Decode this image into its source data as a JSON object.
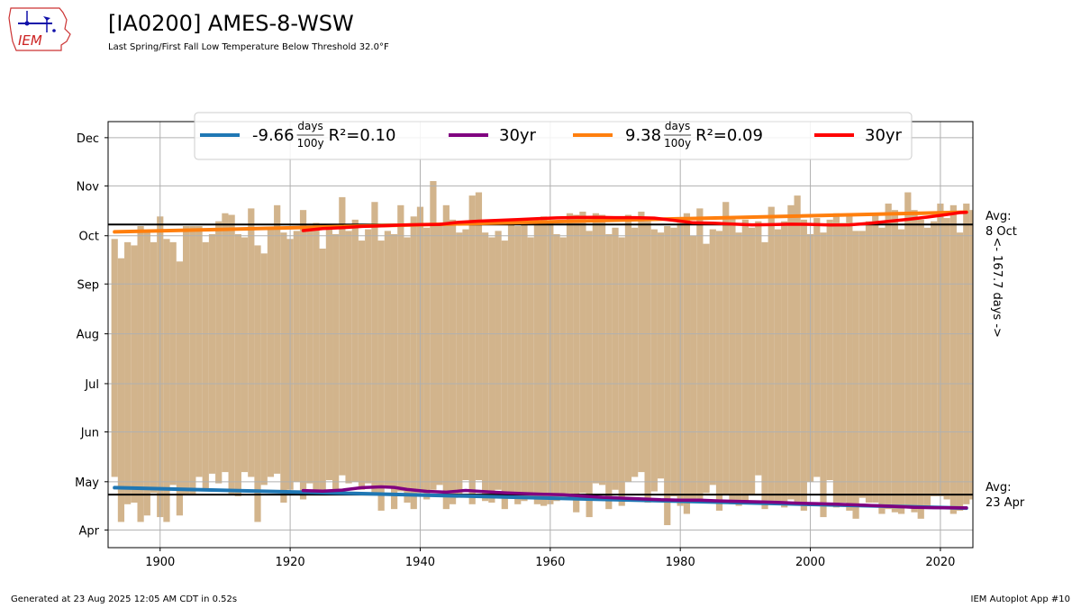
{
  "header": {
    "title": "[IA0200] AMES-8-WSW",
    "subtitle": "Last Spring/First Fall Low Temperature Below Threshold 32.0°F"
  },
  "logo": {
    "text": "IEM",
    "icon": "iowa-state-outline-weather-station-icon"
  },
  "footer": {
    "generated": "Generated at 23 Aug 2025 12:05 AM CDT in 0.52s",
    "app": "IEM Autoplot App #10"
  },
  "colors": {
    "bars": "#d2b48c",
    "spring_trend": "#1f77b4",
    "spring_30yr": "#800080",
    "fall_trend": "#ff7f0e",
    "fall_30yr": "#ff0000",
    "avg_line": "#000000",
    "grid": "#b0b0b0"
  },
  "chart_data": {
    "type": "bar",
    "description_units": "day of year (1 = Jan 1)",
    "xlim": [
      1892,
      2025
    ],
    "ylim": [
      80,
      345
    ],
    "x_ticks": [
      1900,
      1920,
      1940,
      1960,
      1980,
      2000,
      2020
    ],
    "y_ticks": [
      {
        "label": "Apr",
        "doy": 91
      },
      {
        "label": "May",
        "doy": 121
      },
      {
        "label": "Jun",
        "doy": 152
      },
      {
        "label": "Jul",
        "doy": 182
      },
      {
        "label": "Aug",
        "doy": 213
      },
      {
        "label": "Sep",
        "doy": 244
      },
      {
        "label": "Oct",
        "doy": 274
      },
      {
        "label": "Nov",
        "doy": 305
      },
      {
        "label": "Dec",
        "doy": 335
      }
    ],
    "grid": true,
    "legend": {
      "placement": "top-center",
      "entries": [
        {
          "series": "spring_trend",
          "slope": "-9.66",
          "r2": "R²=0.10",
          "unit_num": "days",
          "unit_den": "100y"
        },
        {
          "series": "spring_30yr",
          "label": "30yr"
        },
        {
          "series": "fall_trend",
          "slope": "9.38",
          "r2": "R²=0.09",
          "unit_num": "days",
          "unit_den": "100y"
        },
        {
          "series": "fall_30yr",
          "label": "30yr"
        }
      ]
    },
    "avg_spring": {
      "doy": 113,
      "label1": "Avg:",
      "label2": "23 Apr"
    },
    "avg_fall": {
      "doy": 281,
      "label1": "Avg:",
      "label2": "8 Oct"
    },
    "span_label": "<- 167.7 days ->",
    "first_year": 1893,
    "spring": [
      124,
      96,
      107,
      108,
      96,
      100,
      114,
      99,
      96,
      119,
      100,
      113,
      113,
      124,
      116,
      126,
      120,
      127,
      113,
      112,
      127,
      124,
      96,
      119,
      124,
      126,
      108,
      116,
      121,
      110,
      120,
      114,
      115,
      122,
      116,
      125,
      120,
      121,
      116,
      120,
      114,
      103,
      118,
      104,
      115,
      108,
      104,
      114,
      110,
      116,
      119,
      104,
      107,
      111,
      122,
      107,
      122,
      109,
      108,
      116,
      104,
      111,
      107,
      109,
      112,
      107,
      106,
      107,
      109,
      110,
      111,
      102,
      114,
      99,
      120,
      119,
      104,
      116,
      106,
      121,
      124,
      127,
      108,
      115,
      123,
      94,
      112,
      106,
      101,
      110,
      108,
      114,
      119,
      103,
      113,
      107,
      106,
      108,
      113,
      125,
      104,
      108,
      107,
      105,
      110,
      107,
      103,
      121,
      124,
      99,
      122,
      105,
      108,
      103,
      98,
      111,
      108,
      108,
      101,
      104,
      102,
      101,
      106,
      102,
      98,
      104,
      112,
      112,
      110,
      101,
      103,
      107,
      110
    ],
    "fall": [
      272,
      260,
      270,
      268,
      280,
      276,
      270,
      286,
      272,
      270,
      258,
      280,
      280,
      280,
      270,
      275,
      283,
      288,
      287,
      275,
      273,
      291,
      268,
      263,
      278,
      293,
      276,
      272,
      277,
      290,
      277,
      282,
      266,
      279,
      275,
      298,
      277,
      284,
      271,
      278,
      295,
      271,
      277,
      275,
      293,
      273,
      286,
      292,
      279,
      308,
      282,
      293,
      284,
      276,
      278,
      299,
      301,
      276,
      273,
      277,
      271,
      283,
      280,
      283,
      273,
      283,
      286,
      283,
      275,
      273,
      288,
      287,
      289,
      277,
      288,
      287,
      275,
      279,
      273,
      287,
      279,
      289,
      283,
      278,
      276,
      280,
      279,
      282,
      288,
      274,
      291,
      269,
      278,
      277,
      295,
      285,
      276,
      284,
      279,
      283,
      270,
      292,
      278,
      283,
      293,
      299,
      284,
      275,
      285,
      276,
      284,
      288,
      282,
      288,
      277,
      277,
      283,
      288,
      279,
      294,
      290,
      278,
      301,
      290,
      284,
      279,
      283,
      294,
      285,
      293,
      276,
      294,
      290
    ],
    "spring_30yr": {
      "x": [
        1922,
        1925,
        1928,
        1931,
        1934,
        1936,
        1938,
        1941,
        1944,
        1947,
        1950,
        1953,
        1956,
        1959,
        1962,
        1965,
        1968,
        1971,
        1974,
        1977,
        1980,
        1983,
        1986,
        1989,
        1992,
        1995,
        1998,
        2001,
        2004,
        2007,
        2010,
        2013,
        2016,
        2019,
        2022,
        2024
      ],
      "values": [
        115.5,
        115.2,
        115.8,
        117.3,
        117.8,
        117.5,
        116.2,
        115.0,
        114.5,
        115.6,
        114.8,
        114.1,
        113.6,
        113.2,
        112.9,
        112.1,
        111.3,
        110.8,
        110.3,
        109.8,
        109.6,
        109.6,
        109.1,
        108.8,
        108.5,
        108.2,
        107.7,
        107.4,
        107.0,
        106.6,
        106.1,
        105.6,
        105.1,
        104.9,
        104.8,
        104.7
      ]
    },
    "fall_30yr": {
      "x": [
        1922,
        1925,
        1928,
        1931,
        1934,
        1937,
        1940,
        1943,
        1946,
        1949,
        1952,
        1955,
        1958,
        1961,
        1964,
        1967,
        1970,
        1973,
        1976,
        1979,
        1982,
        1985,
        1988,
        1991,
        1994,
        1997,
        2000,
        2003,
        2006,
        2009,
        2012,
        2015,
        2018,
        2021,
        2023,
        2024
      ],
      "values": [
        277.2,
        278.5,
        279.0,
        279.8,
        280.2,
        280.6,
        280.9,
        281.1,
        282.4,
        283.1,
        283.6,
        284.1,
        284.6,
        285.1,
        285.4,
        285.5,
        285.3,
        285.3,
        285.0,
        283.6,
        282.1,
        281.8,
        281.3,
        280.8,
        280.9,
        281.2,
        281.1,
        280.7,
        280.8,
        281.7,
        282.9,
        284.2,
        285.6,
        287.2,
        288.4,
        288.6
      ]
    },
    "spring_trend": {
      "x": [
        1893,
        2024
      ],
      "values": [
        117.3,
        104.6
      ]
    },
    "fall_trend": {
      "x": [
        1893,
        2024
      ],
      "values": [
        276.4,
        288.7
      ]
    }
  }
}
